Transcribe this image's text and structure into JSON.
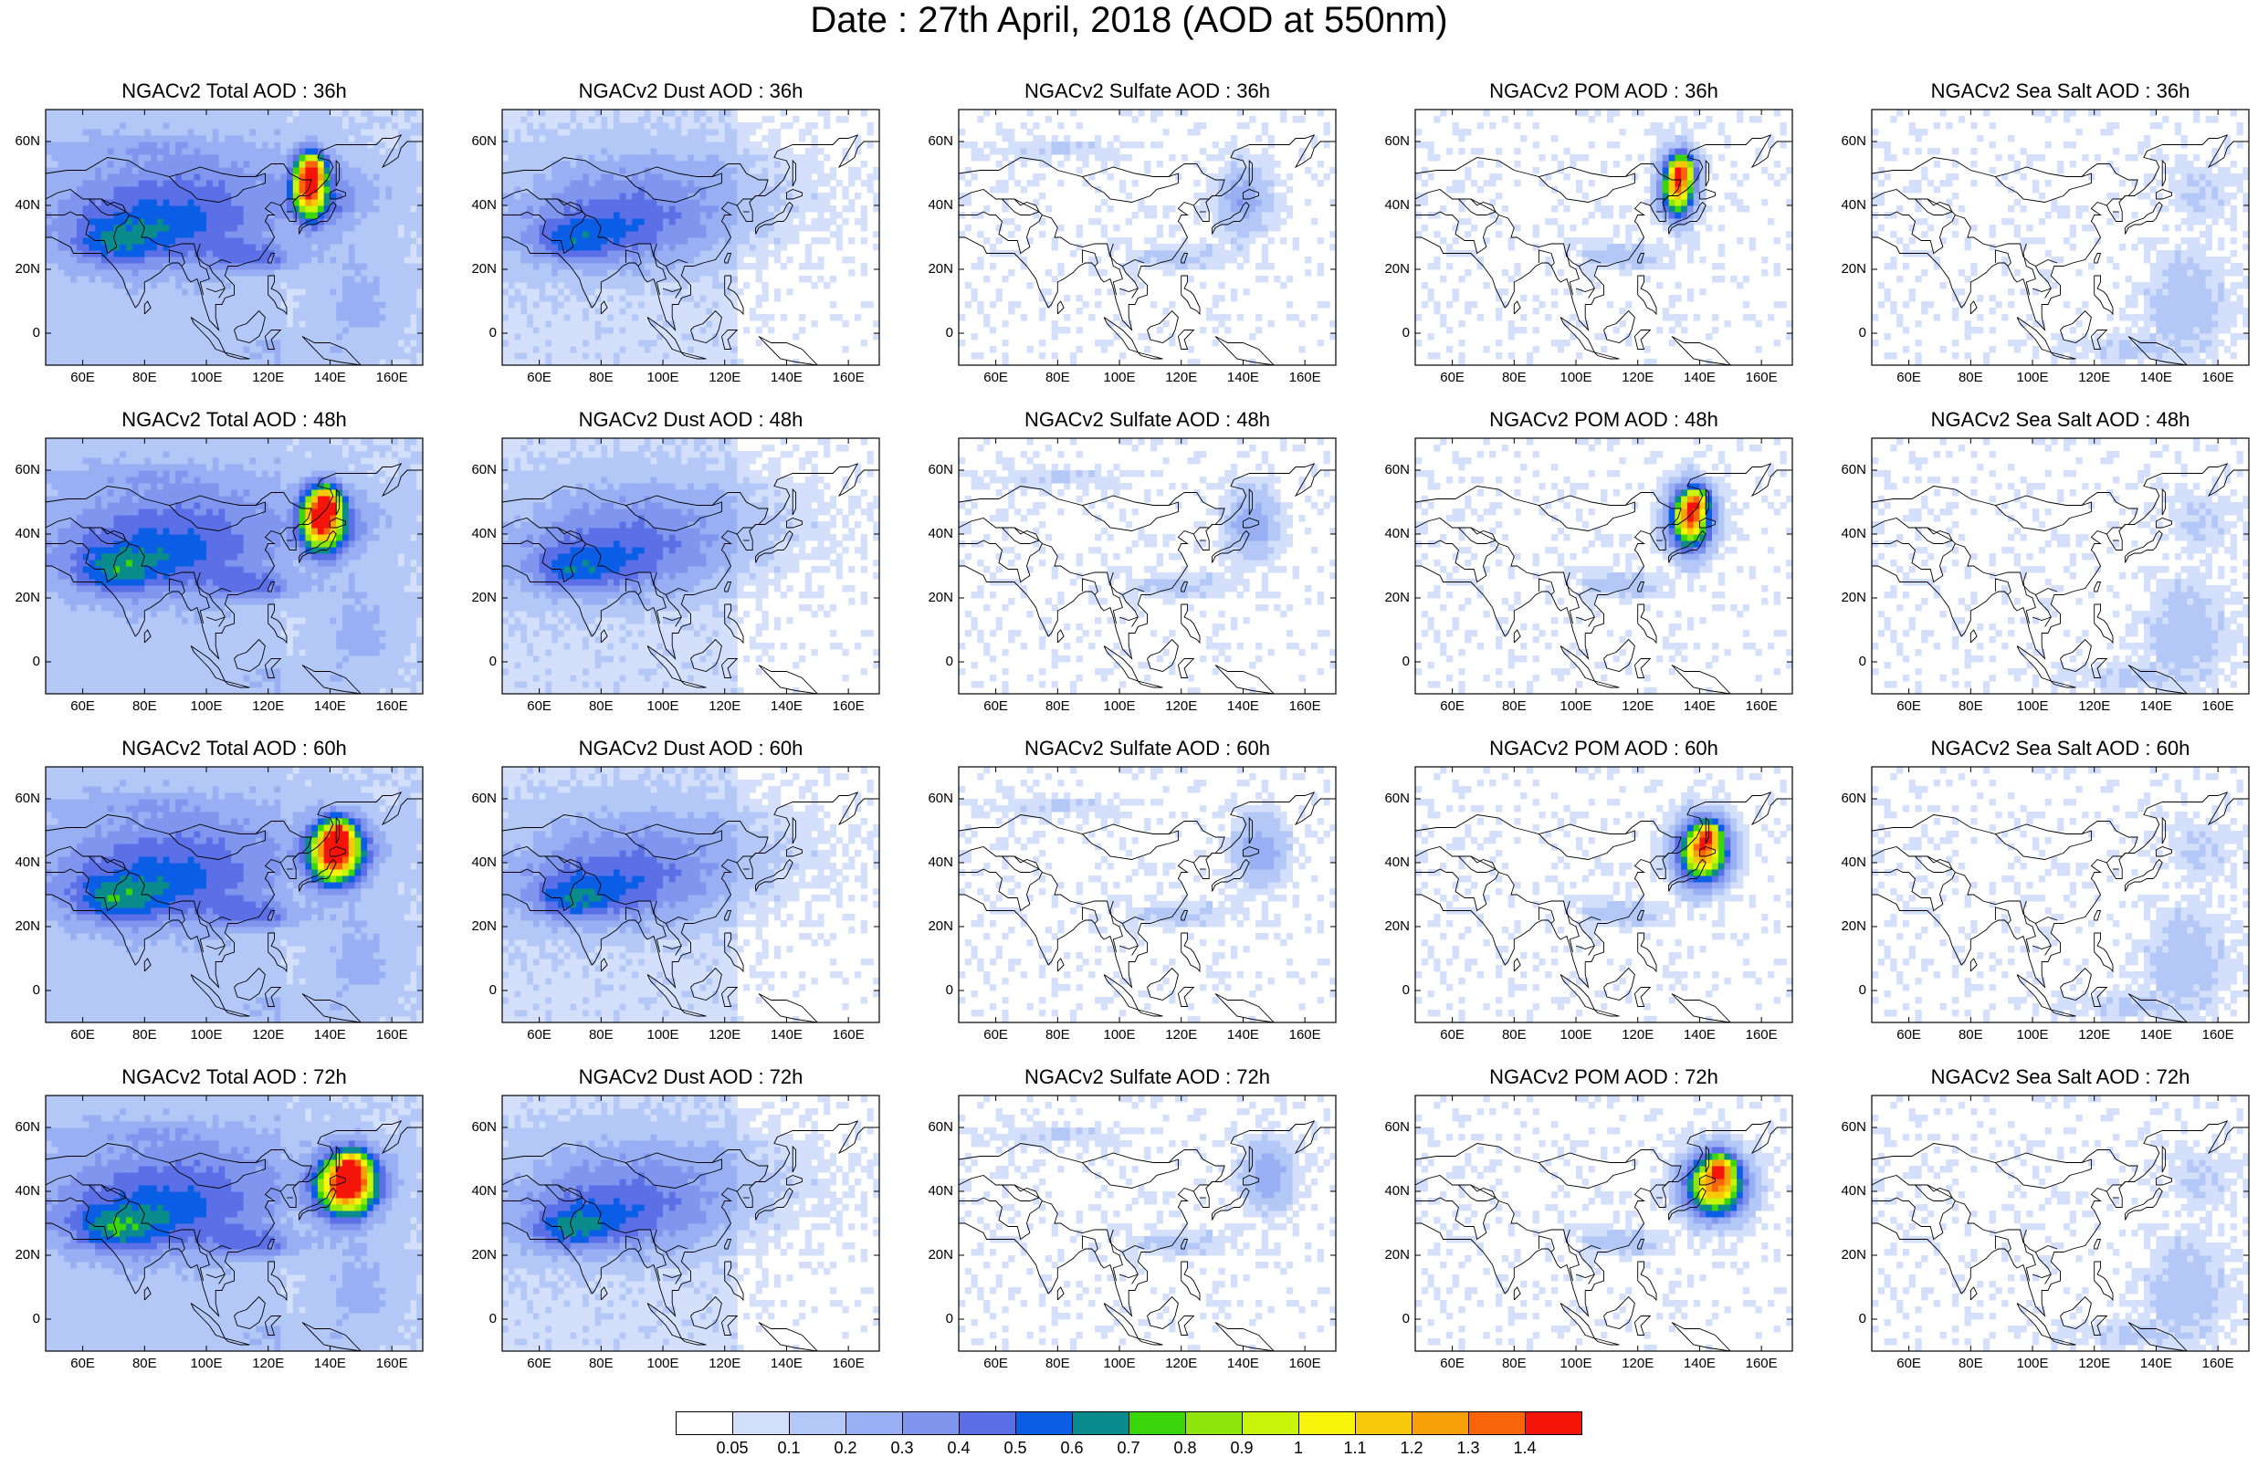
{
  "title": "Date : 27th April, 2018 (AOD at 550nm)",
  "axes": {
    "lat_labels": [
      "60N",
      "40N",
      "20N",
      "0"
    ],
    "lat_values": [
      60,
      40,
      20,
      0
    ],
    "lon_labels": [
      "60E",
      "80E",
      "100E",
      "120E",
      "140E",
      "160E"
    ],
    "lon_values": [
      60,
      80,
      100,
      120,
      140,
      160
    ],
    "lon_range": [
      48,
      170
    ],
    "lat_range": [
      -10,
      70
    ]
  },
  "panels": [
    {
      "title": "NGACv2 Total AOD : 36h",
      "species": "total",
      "hour": 36
    },
    {
      "title": "NGACv2 Dust AOD : 36h",
      "species": "dust",
      "hour": 36
    },
    {
      "title": "NGACv2 Sulfate AOD : 36h",
      "species": "sulfate",
      "hour": 36
    },
    {
      "title": "NGACv2 POM AOD : 36h",
      "species": "pom",
      "hour": 36
    },
    {
      "title": "NGACv2 Sea Salt AOD : 36h",
      "species": "seasalt",
      "hour": 36
    },
    {
      "title": "NGACv2 Total AOD : 48h",
      "species": "total",
      "hour": 48
    },
    {
      "title": "NGACv2 Dust AOD : 48h",
      "species": "dust",
      "hour": 48
    },
    {
      "title": "NGACv2 Sulfate AOD : 48h",
      "species": "sulfate",
      "hour": 48
    },
    {
      "title": "NGACv2 POM AOD : 48h",
      "species": "pom",
      "hour": 48
    },
    {
      "title": "NGACv2 Sea Salt AOD : 48h",
      "species": "seasalt",
      "hour": 48
    },
    {
      "title": "NGACv2 Total AOD : 60h",
      "species": "total",
      "hour": 60
    },
    {
      "title": "NGACv2 Dust AOD : 60h",
      "species": "dust",
      "hour": 60
    },
    {
      "title": "NGACv2 Sulfate AOD : 60h",
      "species": "sulfate",
      "hour": 60
    },
    {
      "title": "NGACv2 POM AOD : 60h",
      "species": "pom",
      "hour": 60
    },
    {
      "title": "NGACv2 Sea Salt AOD : 60h",
      "species": "seasalt",
      "hour": 60
    },
    {
      "title": "NGACv2 Total AOD : 72h",
      "species": "total",
      "hour": 72
    },
    {
      "title": "NGACv2 Dust AOD : 72h",
      "species": "dust",
      "hour": 72
    },
    {
      "title": "NGACv2 Sulfate AOD : 72h",
      "species": "sulfate",
      "hour": 72
    },
    {
      "title": "NGACv2 POM AOD : 72h",
      "species": "pom",
      "hour": 72
    },
    {
      "title": "NGACv2 Sea Salt  AOD : 72h",
      "species": "seasalt",
      "hour": 72
    }
  ],
  "colorbar": {
    "labels": [
      "0.05",
      "0.1",
      "0.2",
      "0.3",
      "0.4",
      "0.5",
      "0.6",
      "0.7",
      "0.8",
      "0.9",
      "1",
      "1.1",
      "1.2",
      "1.3",
      "1.4"
    ],
    "colors": [
      "#ffffff",
      "#d4e0fb",
      "#b4c8f7",
      "#98b0f3",
      "#7f95ee",
      "#5b6fe6",
      "#0a5ee6",
      "#0a8c8c",
      "#3ad60a",
      "#8ee60a",
      "#c8f50a",
      "#f8f50a",
      "#f8c80a",
      "#f8a00a",
      "#f8640a",
      "#f5140a"
    ]
  }
}
